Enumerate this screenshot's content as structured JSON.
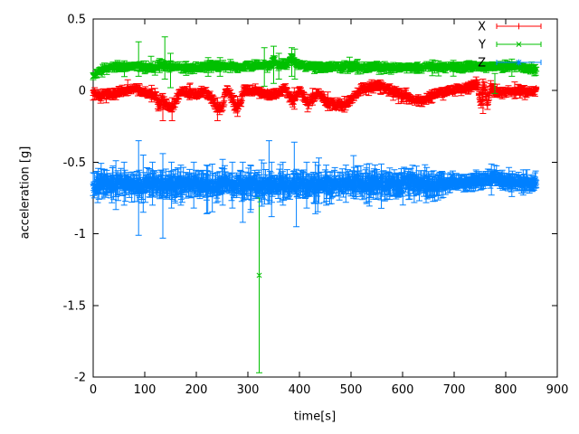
{
  "chart_data": {
    "type": "scatter",
    "title": "",
    "xlabel": "time[s]",
    "ylabel": "acceleration [g]",
    "xlim": [
      0,
      900
    ],
    "ylim": [
      -2,
      0.5
    ],
    "grid": false,
    "background": "#ffffff",
    "axis_color": "#000000",
    "xticks": {
      "values": [
        0,
        100,
        200,
        300,
        400,
        500,
        600,
        700,
        800,
        900
      ],
      "labels": [
        "0",
        "100",
        "200",
        "300",
        "400",
        "500",
        "600",
        "700",
        "800",
        "900"
      ]
    },
    "yticks": {
      "values": [
        0.5,
        0,
        -0.5,
        -1,
        -1.5,
        -2
      ],
      "labels": [
        "0.5",
        "0",
        "-0.5",
        "-1",
        "-1.5",
        "-2"
      ]
    },
    "legend": {
      "position": "top-right",
      "entries": [
        {
          "label": "X"
        },
        {
          "label": "Y"
        },
        {
          "label": "Z"
        }
      ]
    },
    "series": [
      {
        "name": "X",
        "style": "errorbars",
        "color": "#ff0000",
        "marker": "plus",
        "t_start": 0,
        "t_end": 860,
        "t_step": 1.1,
        "noise": 0.016,
        "errbar": 0.02,
        "baseline": [
          [
            0,
            -0.01
          ],
          [
            12,
            -0.04
          ],
          [
            25,
            -0.03
          ],
          [
            40,
            -0.02
          ],
          [
            55,
            -0.01
          ],
          [
            70,
            0.0
          ],
          [
            82,
            0.02
          ],
          [
            95,
            -0.01
          ],
          [
            110,
            -0.03
          ],
          [
            120,
            -0.02
          ],
          [
            127,
            -0.1
          ],
          [
            135,
            -0.06
          ],
          [
            144,
            -0.12
          ],
          [
            152,
            -0.13
          ],
          [
            162,
            -0.05
          ],
          [
            172,
            -0.01
          ],
          [
            185,
            -0.02
          ],
          [
            200,
            -0.03
          ],
          [
            218,
            0.0
          ],
          [
            231,
            -0.06
          ],
          [
            241,
            -0.13
          ],
          [
            252,
            -0.1
          ],
          [
            258,
            0.0
          ],
          [
            266,
            -0.02
          ],
          [
            276,
            -0.12
          ],
          [
            285,
            -0.09
          ],
          [
            293,
            0.02
          ],
          [
            305,
            -0.01
          ],
          [
            318,
            0.01
          ],
          [
            330,
            -0.02
          ],
          [
            342,
            -0.03
          ],
          [
            355,
            -0.02
          ],
          [
            372,
            0.015
          ],
          [
            387,
            -0.07
          ],
          [
            400,
            0.0
          ],
          [
            418,
            -0.09
          ],
          [
            434,
            -0.01
          ],
          [
            440,
            -0.02
          ],
          [
            452,
            -0.08
          ],
          [
            470,
            -0.1
          ],
          [
            490,
            -0.095
          ],
          [
            505,
            -0.04
          ],
          [
            520,
            0.01
          ],
          [
            545,
            0.03
          ],
          [
            565,
            0.02
          ],
          [
            585,
            -0.02
          ],
          [
            605,
            -0.03
          ],
          [
            625,
            -0.07
          ],
          [
            645,
            -0.06
          ],
          [
            665,
            -0.02
          ],
          [
            690,
            0.0
          ],
          [
            710,
            0.01
          ],
          [
            733,
            0.02
          ],
          [
            745,
            0.05
          ],
          [
            752,
            -0.1
          ],
          [
            758,
            0.04
          ],
          [
            764,
            -0.1
          ],
          [
            771,
            0.03
          ],
          [
            780,
            -0.01
          ],
          [
            800,
            -0.01
          ],
          [
            820,
            -0.005
          ],
          [
            845,
            0.0
          ],
          [
            860,
            0.0
          ]
        ],
        "special_errorbars": [
          [
            3,
            -0.06,
            0.02
          ],
          [
            135,
            -0.21,
            -0.02
          ],
          [
            153,
            -0.21,
            -0.05
          ],
          [
            241,
            -0.21,
            -0.05
          ],
          [
            280,
            -0.18,
            -0.04
          ],
          [
            390,
            -0.13,
            0.02
          ],
          [
            455,
            -0.14,
            -0.01
          ],
          [
            756,
            -0.16,
            0.08
          ]
        ],
        "outliers": []
      },
      {
        "name": "Y",
        "style": "errorbars",
        "color": "#00c000",
        "marker": "cross",
        "t_start": 0,
        "t_end": 860,
        "t_step": 1.1,
        "noise": 0.015,
        "errbar": 0.018,
        "baseline": [
          [
            0,
            0.105
          ],
          [
            6,
            0.115
          ],
          [
            15,
            0.14
          ],
          [
            30,
            0.16
          ],
          [
            50,
            0.17
          ],
          [
            70,
            0.17
          ],
          [
            88,
            0.18
          ],
          [
            100,
            0.165
          ],
          [
            120,
            0.16
          ],
          [
            139,
            0.175
          ],
          [
            155,
            0.165
          ],
          [
            175,
            0.16
          ],
          [
            200,
            0.16
          ],
          [
            222,
            0.17
          ],
          [
            246,
            0.17
          ],
          [
            270,
            0.165
          ],
          [
            290,
            0.17
          ],
          [
            310,
            0.17
          ],
          [
            330,
            0.18
          ],
          [
            340,
            0.17
          ],
          [
            350,
            0.21
          ],
          [
            358,
            0.18
          ],
          [
            370,
            0.18
          ],
          [
            378,
            0.19
          ],
          [
            385,
            0.23
          ],
          [
            393,
            0.19
          ],
          [
            402,
            0.17
          ],
          [
            420,
            0.165
          ],
          [
            445,
            0.16
          ],
          [
            470,
            0.165
          ],
          [
            500,
            0.17
          ],
          [
            530,
            0.165
          ],
          [
            560,
            0.16
          ],
          [
            590,
            0.16
          ],
          [
            620,
            0.16
          ],
          [
            650,
            0.165
          ],
          [
            680,
            0.165
          ],
          [
            710,
            0.165
          ],
          [
            740,
            0.17
          ],
          [
            770,
            0.165
          ],
          [
            800,
            0.17
          ],
          [
            825,
            0.17
          ],
          [
            845,
            0.155
          ],
          [
            860,
            0.15
          ]
        ],
        "special_errorbars": [
          [
            88,
            0.1,
            0.34
          ],
          [
            139,
            0.08,
            0.375
          ],
          [
            150,
            0.02,
            0.26
          ],
          [
            223,
            0.1,
            0.23
          ],
          [
            246,
            0.1,
            0.23
          ],
          [
            332,
            0.03,
            0.3
          ],
          [
            350,
            0.05,
            0.31
          ],
          [
            360,
            0.08,
            0.26
          ],
          [
            385,
            0.1,
            0.3
          ],
          [
            391,
            0.08,
            0.29
          ],
          [
            779,
            -0.02,
            0.12
          ],
          [
            812,
            0.1,
            0.22
          ]
        ],
        "outliers": [
          [
            322,
            -1.29,
            -1.97,
            -0.75
          ]
        ]
      },
      {
        "name": "Z",
        "style": "errorbars",
        "color": "#0080ff",
        "marker": "star",
        "t_start": 0,
        "t_end": 860,
        "t_step": 1.1,
        "noise": 0.042,
        "errbar": 0.055,
        "taper": {
          "after": 680,
          "scale": 0.65
        },
        "baseline": [
          [
            0,
            -0.66
          ],
          [
            40,
            -0.655
          ],
          [
            90,
            -0.66
          ],
          [
            140,
            -0.655
          ],
          [
            200,
            -0.66
          ],
          [
            260,
            -0.655
          ],
          [
            320,
            -0.66
          ],
          [
            380,
            -0.655
          ],
          [
            440,
            -0.66
          ],
          [
            500,
            -0.655
          ],
          [
            560,
            -0.65
          ],
          [
            620,
            -0.65
          ],
          [
            680,
            -0.648
          ],
          [
            720,
            -0.645
          ],
          [
            777,
            -0.615
          ],
          [
            800,
            -0.64
          ],
          [
            830,
            -0.645
          ],
          [
            860,
            -0.645
          ]
        ],
        "special_errorbars": [
          [
            44,
            -0.83,
            -0.49
          ],
          [
            60,
            -0.8,
            -0.5
          ],
          [
            88,
            -1.01,
            -0.35
          ],
          [
            97,
            -0.85,
            -0.45
          ],
          [
            115,
            -0.8,
            -0.5
          ],
          [
            135,
            -1.03,
            -0.44
          ],
          [
            152,
            -0.82,
            -0.5
          ],
          [
            170,
            -0.8,
            -0.52
          ],
          [
            195,
            -0.82,
            -0.5
          ],
          [
            220,
            -0.86,
            -0.52
          ],
          [
            251,
            -0.8,
            -0.48
          ],
          [
            270,
            -0.82,
            -0.5
          ],
          [
            290,
            -0.92,
            -0.5
          ],
          [
            305,
            -0.85,
            -0.52
          ],
          [
            341,
            -0.62,
            -0.35
          ],
          [
            346,
            -0.88,
            -0.5
          ],
          [
            368,
            -0.8,
            -0.5
          ],
          [
            390,
            -0.56,
            -0.36
          ],
          [
            394,
            -0.95,
            -0.55
          ],
          [
            414,
            -0.82,
            -0.5
          ],
          [
            431,
            -0.86,
            -0.5
          ],
          [
            452,
            -0.8,
            -0.52
          ],
          [
            490,
            -0.78,
            -0.52
          ],
          [
            530,
            -0.78,
            -0.54
          ],
          [
            575,
            -0.76,
            -0.54
          ],
          [
            612,
            -0.76,
            -0.55
          ],
          [
            660,
            -0.74,
            -0.56
          ],
          [
            812,
            -0.74,
            -0.58
          ]
        ],
        "outliers": []
      }
    ]
  }
}
